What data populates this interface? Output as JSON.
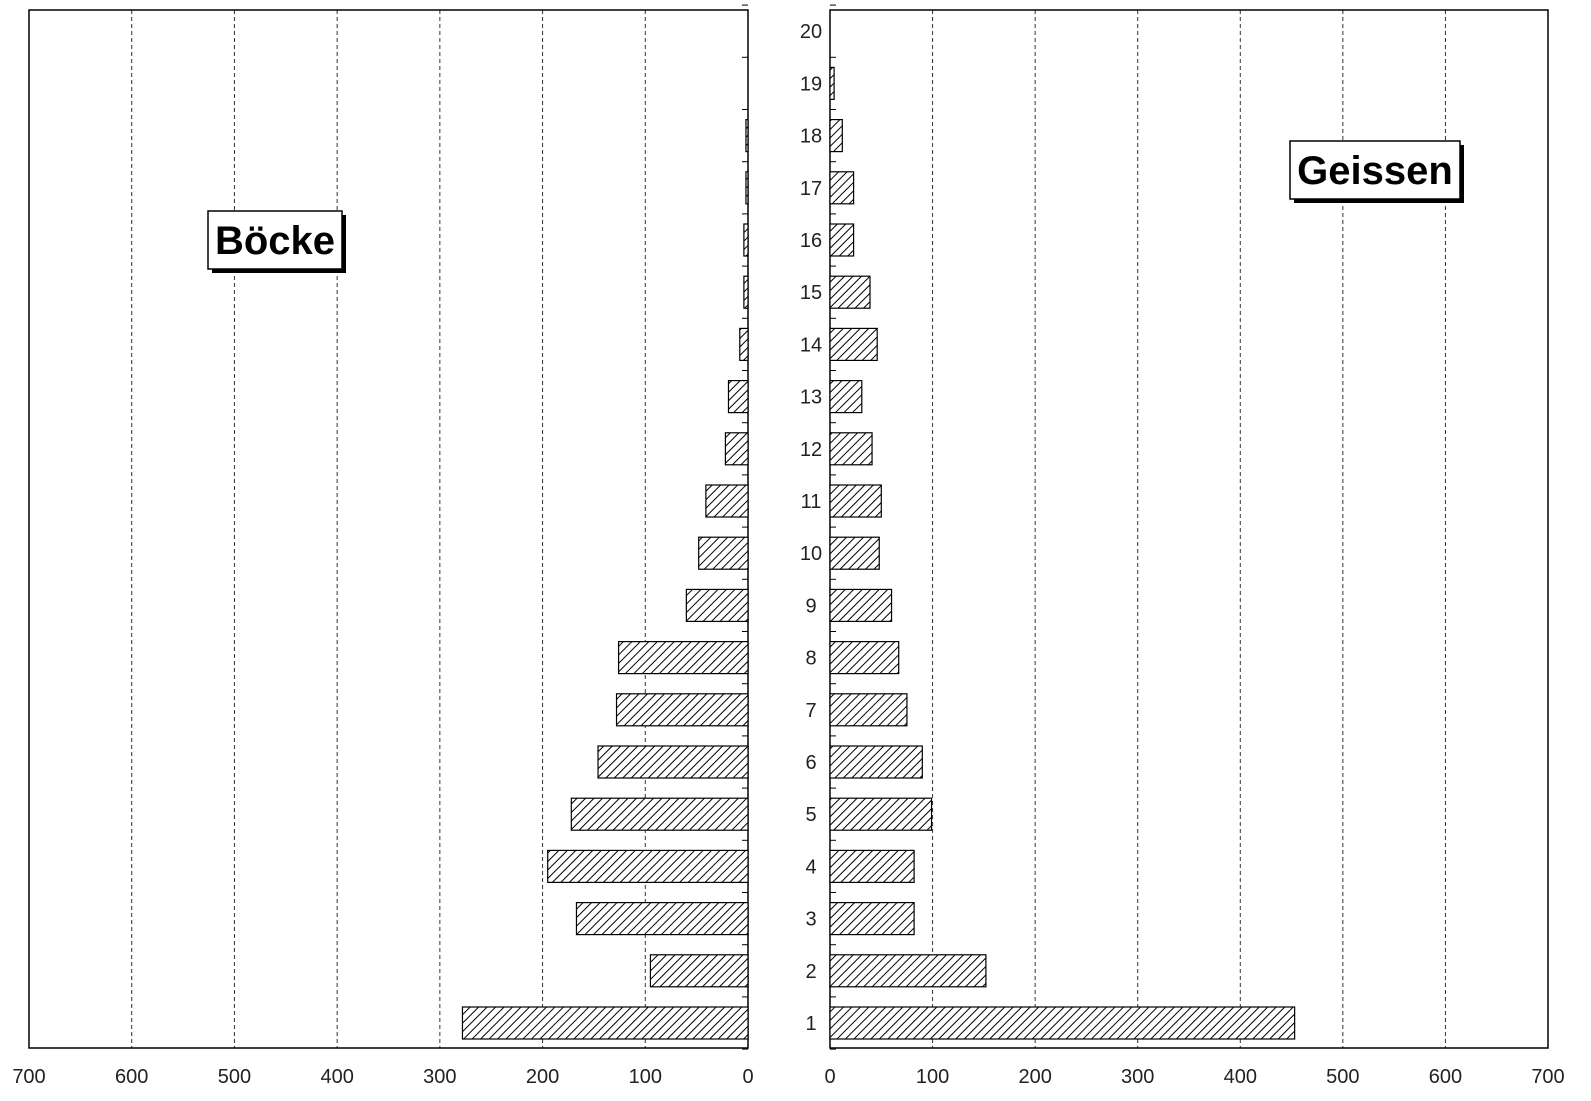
{
  "chart_data": {
    "type": "bar",
    "orientation": "horizontal-pyramid",
    "categories": [
      "1",
      "2",
      "3",
      "4",
      "5",
      "6",
      "7",
      "8",
      "9",
      "10",
      "11",
      "12",
      "13",
      "14",
      "15",
      "16",
      "17",
      "18",
      "19",
      "20"
    ],
    "xlim": [
      0,
      700
    ],
    "x_ticks": [
      0,
      100,
      200,
      300,
      400,
      500,
      600,
      700
    ],
    "grid": true,
    "series": [
      {
        "name": "Böcke",
        "side": "left",
        "values": [
          278,
          95,
          167,
          195,
          172,
          146,
          128,
          126,
          60,
          48,
          41,
          22,
          19,
          8,
          4,
          4,
          2,
          2,
          0,
          0
        ]
      },
      {
        "name": "Geissen",
        "side": "right",
        "values": [
          453,
          152,
          82,
          82,
          99,
          90,
          75,
          67,
          60,
          48,
          50,
          41,
          31,
          46,
          39,
          23,
          23,
          12,
          4,
          0
        ]
      }
    ],
    "colors": {
      "bar_fill": "#ffffff",
      "hatch": "#000000",
      "grid": "#333333"
    }
  }
}
